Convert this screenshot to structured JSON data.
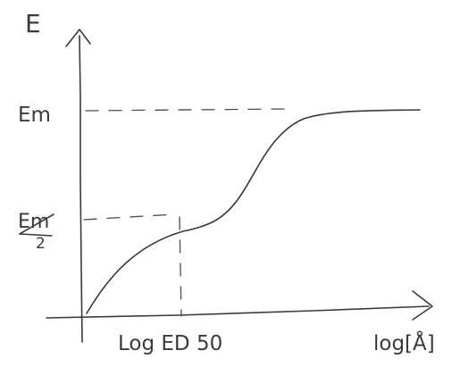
{
  "diagram": {
    "axes": {
      "y_label": "E",
      "x_label": "log[Å]"
    },
    "y_ticks": {
      "max": "Em",
      "half_numerator": "Em",
      "half_denominator": "2"
    },
    "x_ticks": {
      "ed50": "Log ED 50"
    }
  }
}
